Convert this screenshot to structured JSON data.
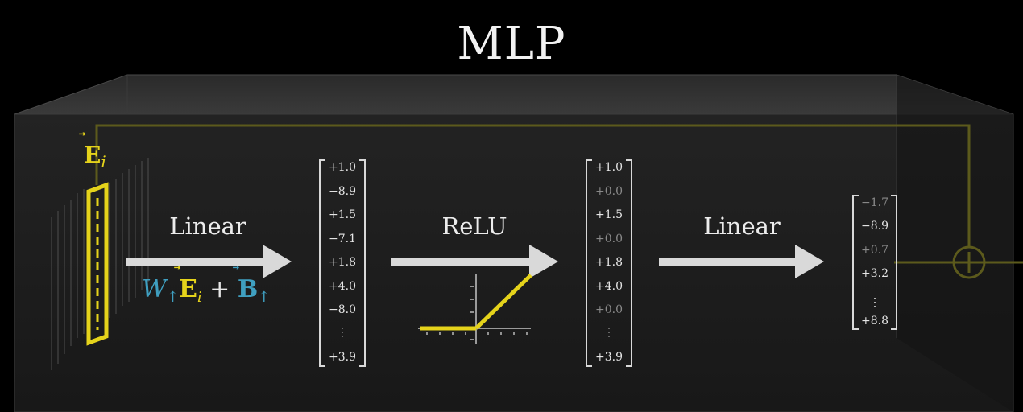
{
  "title": "MLP",
  "input_label": {
    "symbol": "E",
    "subscript": "i"
  },
  "operations": [
    {
      "label": "Linear"
    },
    {
      "label": "ReLU"
    },
    {
      "label": "Linear"
    }
  ],
  "formula": {
    "w_symbol": "W",
    "w_sub": "↑",
    "e_symbol": "E",
    "e_sub": "i",
    "plus": "+",
    "b_symbol": "B",
    "b_sub": "↑"
  },
  "vector_pre_relu": [
    "+1.0",
    "−8.9",
    "+1.5",
    "−7.1",
    "+1.8",
    "+4.0",
    "−8.0",
    "⋮",
    "+3.9"
  ],
  "vector_post_relu": [
    "+1.0",
    "+0.0",
    "+1.5",
    "+0.0",
    "+1.8",
    "+4.0",
    "+0.0",
    "⋮",
    "+3.9"
  ],
  "vector_output": [
    "−1.7",
    "−8.9",
    "+0.7",
    "+3.2",
    "⋮",
    "+8.8"
  ],
  "colors": {
    "background": "#000000",
    "accent_yellow": "#e5d31b",
    "accent_blue": "#3f9fc0",
    "arrow_gray": "#d9d9d9",
    "box_face": "#1d1d1d"
  },
  "icons": [
    "plus-circle-icon",
    "relu-graph-icon",
    "arrow-right-icon"
  ]
}
